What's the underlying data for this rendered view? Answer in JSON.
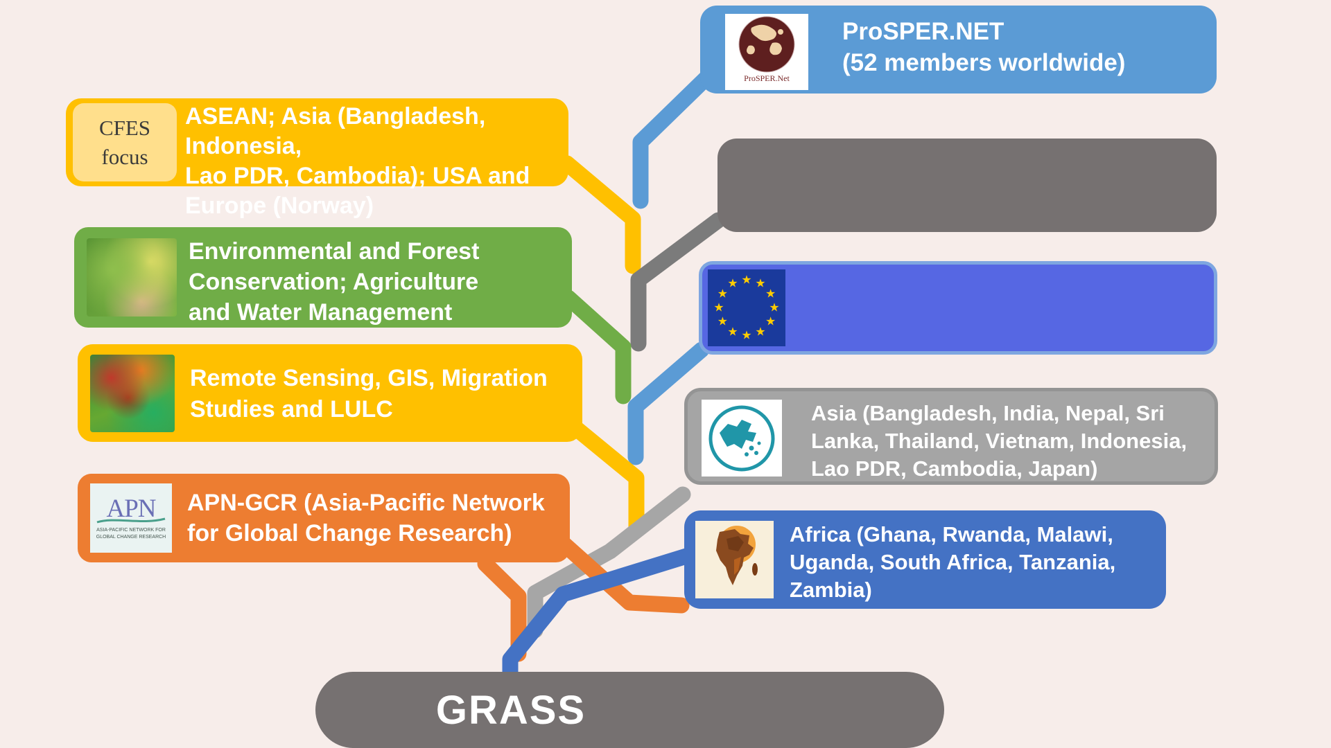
{
  "palette": {
    "background": "#F7EDEA",
    "yellow": "#FFC000",
    "yellow_badge": "#FFDF8C",
    "green": "#70AD47",
    "orange": "#ED7D31",
    "sky_blue": "#5B9BD5",
    "indigo_blue": "#5667E3",
    "eu_border_blue": "#7EA6E0",
    "eu_navy": "#1A3A9C",
    "star_gold": "#FFCC00",
    "dark_gray": "#767171",
    "mid_gray": "#A5A5A5",
    "africa_blue": "#4472C4",
    "teal": "#2096A8",
    "connector_gray_dark": "#7B7B7B",
    "connector_gray_light": "#A6A6A6"
  },
  "left_boxes": [
    {
      "id": "cfes-focus",
      "badge": "CFES\nfocus",
      "text": "ASEAN; Asia (Bangladesh, Indonesia,\nLao PDR, Cambodia); USA and\nEurope (Norway)"
    },
    {
      "id": "environment",
      "icon": "plant-in-hands-photo",
      "text": "Environmental and Forest\nConservation; Agriculture\nand Water Management"
    },
    {
      "id": "remote-sensing",
      "icon": "terrain-relief-photo",
      "text": "Remote Sensing, GIS, Migration\nStudies and LULC"
    },
    {
      "id": "apn-gcr",
      "icon": "apn-logo",
      "text": "APN-GCR (Asia-Pacific Network\nfor Global Change Research)"
    }
  ],
  "right_boxes": [
    {
      "id": "prosper-net",
      "icon": "prosper-net-logo",
      "logo_caption": "ProSPER.Net",
      "text": "ProSPER.NET\n(52 members worldwide)"
    },
    {
      "id": "gray-blank",
      "text": ""
    },
    {
      "id": "eu",
      "icon": "eu-flag",
      "text": ""
    },
    {
      "id": "asia",
      "icon": "asia-map",
      "text": "Asia (Bangladesh, India, Nepal, Sri\nLanka, Thailand, Vietnam, Indonesia,\nLao PDR, Cambodia, Japan)"
    },
    {
      "id": "africa",
      "icon": "africa-map",
      "text": "Africa (Ghana, Rwanda, Malawi,\nUganda, South Africa, Tanzania,\nZambia)"
    }
  ],
  "apn_logo": {
    "title": "APN",
    "caption": "ASIA-PACIFIC NETWORK FOR\nGLOBAL CHANGE RESEARCH"
  },
  "root": {
    "label": "GRASS"
  }
}
